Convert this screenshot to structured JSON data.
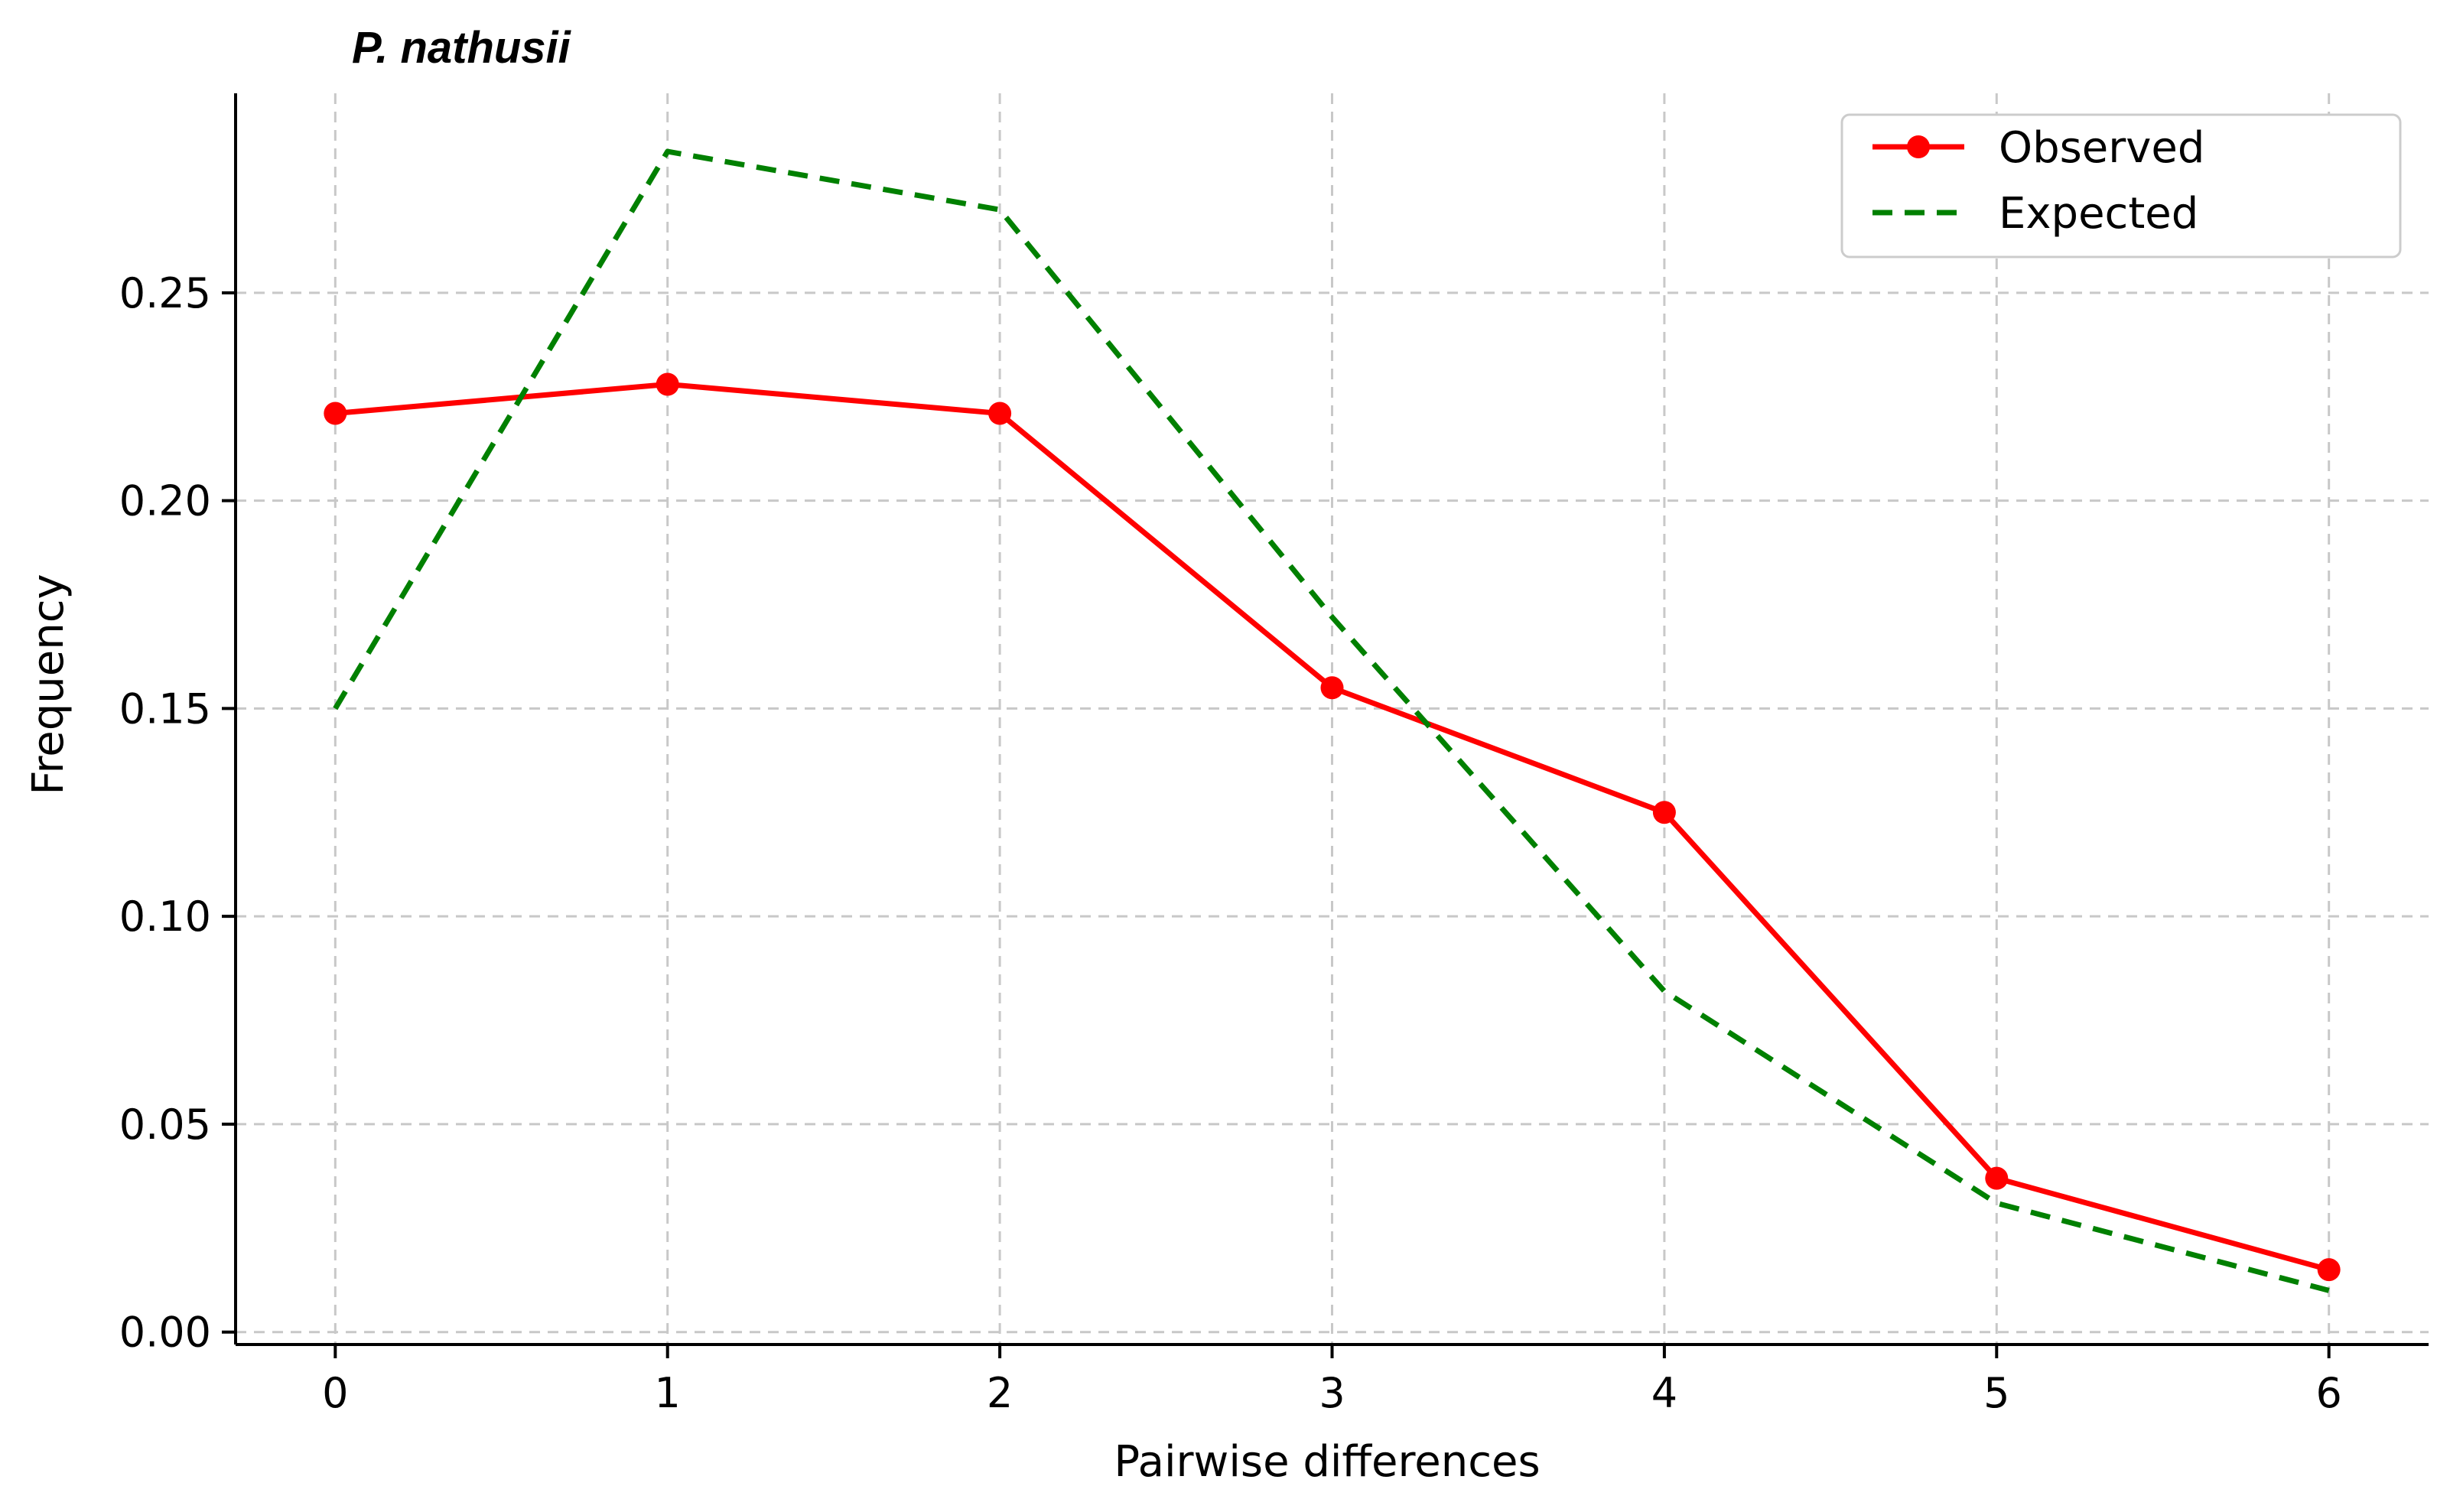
{
  "chart_data": {
    "type": "line",
    "title": "P. nathusii",
    "xlabel": "Pairwise differences",
    "ylabel": "Frequency",
    "x": [
      0,
      1,
      2,
      3,
      4,
      5,
      6
    ],
    "xlim": [
      -0.3,
      6.3
    ],
    "ylim": [
      -0.003,
      0.298
    ],
    "xticks": [
      "0",
      "1",
      "2",
      "3",
      "4",
      "5",
      "6"
    ],
    "yticks": [
      "0.00",
      "0.05",
      "0.10",
      "0.15",
      "0.20",
      "0.25"
    ],
    "ytick_values": [
      0.0,
      0.05,
      0.1,
      0.15,
      0.2,
      0.25
    ],
    "grid": true,
    "legend_position": "top-right",
    "series": [
      {
        "name": "Observed",
        "values": [
          0.221,
          0.228,
          0.221,
          0.155,
          0.125,
          0.037,
          0.015
        ],
        "color": "#ff0000",
        "style": "solid",
        "marker": "circle"
      },
      {
        "name": "Expected",
        "values": [
          0.15,
          0.284,
          0.27,
          0.172,
          0.082,
          0.031,
          0.01
        ],
        "color": "#008000",
        "style": "dashed",
        "marker": "none"
      }
    ]
  }
}
